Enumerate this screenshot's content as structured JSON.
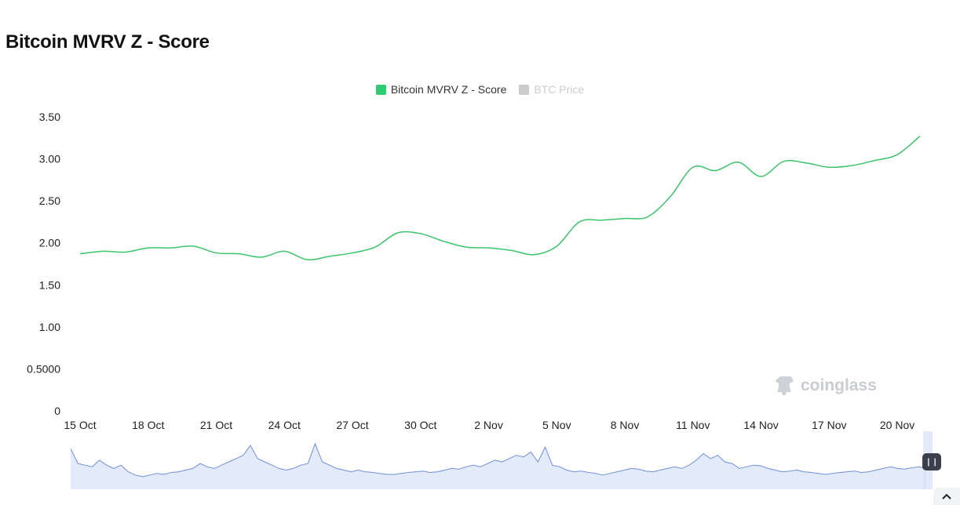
{
  "page": {
    "title": "Bitcoin MVRV Z - Score"
  },
  "legend": [
    {
      "label": "Bitcoin MVRV Z - Score",
      "color": "#2ecc71",
      "active": true
    },
    {
      "label": "BTC Price",
      "color": "#cccccc",
      "active": false
    }
  ],
  "watermark": {
    "text": "coinglass",
    "icon": "coinglass-logo-icon"
  },
  "colors": {
    "line": "#3cc46b",
    "overview_line": "#6f8fd8",
    "overview_fill": "#e3ebfb",
    "slider_handle": "#3a3f4b"
  },
  "chart_data": {
    "type": "line",
    "title": "Bitcoin MVRV Z - Score",
    "xlabel": "",
    "ylabel": "",
    "ylim": [
      0,
      3.5
    ],
    "y_tick_labels": [
      "0",
      "0.5000",
      "1.00",
      "1.50",
      "2.00",
      "2.50",
      "3.00",
      "3.50"
    ],
    "x_tick_labels": [
      "15 Oct",
      "18 Oct",
      "21 Oct",
      "24 Oct",
      "27 Oct",
      "30 Oct",
      "2 Nov",
      "5 Nov",
      "8 Nov",
      "11 Nov",
      "14 Nov",
      "17 Nov",
      "20 Nov"
    ],
    "grid": false,
    "legend_position": "top-center",
    "series": [
      {
        "name": "Bitcoin MVRV Z - Score",
        "x": [
          "15 Oct",
          "16 Oct",
          "17 Oct",
          "18 Oct",
          "19 Oct",
          "20 Oct",
          "21 Oct",
          "22 Oct",
          "23 Oct",
          "24 Oct",
          "25 Oct",
          "26 Oct",
          "27 Oct",
          "28 Oct",
          "29 Oct",
          "30 Oct",
          "31 Oct",
          "1 Nov",
          "2 Nov",
          "3 Nov",
          "4 Nov",
          "5 Nov",
          "6 Nov",
          "7 Nov",
          "8 Nov",
          "9 Nov",
          "10 Nov",
          "11 Nov",
          "12 Nov",
          "13 Nov",
          "14 Nov",
          "15 Nov",
          "16 Nov",
          "17 Nov",
          "18 Nov",
          "19 Nov",
          "20 Nov",
          "21 Nov"
        ],
        "values": [
          1.87,
          1.9,
          1.89,
          1.94,
          1.94,
          1.96,
          1.88,
          1.87,
          1.83,
          1.9,
          1.8,
          1.84,
          1.88,
          1.95,
          2.12,
          2.11,
          2.02,
          1.95,
          1.94,
          1.91,
          1.86,
          1.96,
          2.25,
          2.27,
          2.29,
          2.31,
          2.55,
          2.9,
          2.86,
          2.96,
          2.79,
          2.97,
          2.95,
          2.9,
          2.92,
          2.98,
          3.05,
          3.27
        ]
      }
    ],
    "overview": {
      "type": "area",
      "series_name": "BTC Price",
      "values": [
        0.9,
        0.45,
        0.4,
        0.35,
        0.55,
        0.4,
        0.3,
        0.4,
        0.2,
        0.1,
        0.05,
        0.1,
        0.15,
        0.12,
        0.18,
        0.2,
        0.25,
        0.3,
        0.45,
        0.35,
        0.3,
        0.4,
        0.5,
        0.6,
        0.7,
        1.0,
        0.6,
        0.5,
        0.4,
        0.3,
        0.25,
        0.3,
        0.4,
        0.45,
        1.05,
        0.5,
        0.4,
        0.3,
        0.25,
        0.2,
        0.25,
        0.2,
        0.18,
        0.15,
        0.12,
        0.12,
        0.15,
        0.18,
        0.2,
        0.22,
        0.18,
        0.2,
        0.25,
        0.3,
        0.28,
        0.35,
        0.4,
        0.35,
        0.45,
        0.55,
        0.5,
        0.6,
        0.7,
        0.65,
        0.8,
        0.5,
        0.95,
        0.4,
        0.35,
        0.25,
        0.2,
        0.22,
        0.18,
        0.15,
        0.1,
        0.15,
        0.2,
        0.25,
        0.3,
        0.28,
        0.22,
        0.2,
        0.25,
        0.3,
        0.35,
        0.3,
        0.4,
        0.55,
        0.75,
        0.6,
        0.7,
        0.5,
        0.45,
        0.3,
        0.35,
        0.4,
        0.38,
        0.3,
        0.25,
        0.2,
        0.22,
        0.25,
        0.2,
        0.18,
        0.15,
        0.12,
        0.15,
        0.18,
        0.2,
        0.22,
        0.18,
        0.2,
        0.25,
        0.3,
        0.35,
        0.3,
        0.28,
        0.32,
        0.35,
        0.3
      ]
    }
  }
}
